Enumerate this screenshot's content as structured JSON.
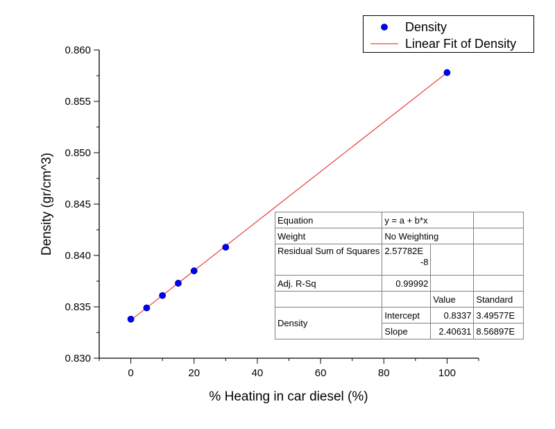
{
  "chart_data": {
    "type": "scatter",
    "xlabel": "% Heating in car diesel (%)",
    "ylabel": "Density (gr/cm^3)",
    "xlim": [
      -10,
      110
    ],
    "ylim": [
      0.83,
      0.86
    ],
    "xticks": [
      "0",
      "20",
      "40",
      "60",
      "80",
      "100"
    ],
    "yticks": [
      "0.830",
      "0.835",
      "0.840",
      "0.845",
      "0.850",
      "0.855",
      "0.860"
    ],
    "series": [
      {
        "name": "Density",
        "kind": "scatter",
        "color": "#0000ff",
        "x": [
          0,
          5,
          10,
          15,
          20,
          30,
          100
        ],
        "y": [
          0.8338,
          0.8349,
          0.8361,
          0.8373,
          0.8385,
          0.8408,
          0.8578
        ]
      },
      {
        "name": "Linear Fit of Density",
        "kind": "line",
        "color": "#e31a1c",
        "x": [
          0,
          100
        ],
        "y": [
          0.8337,
          0.8578
        ]
      }
    ],
    "legend": "top-right",
    "grid": false
  },
  "stats": {
    "equation_label": "Equation",
    "equation_value": "y = a + b*x",
    "weight_label": "Weight",
    "weight_value": "No Weighting",
    "residual_label": "Residual Sum of Squares",
    "residual_value_a": "2.57782E",
    "residual_value_b": "-8",
    "adjr_label": "Adj. R-Sq",
    "adjr_value": "0.99992",
    "col_value": "Value",
    "col_standard": "Standard",
    "group_label": "Density",
    "intercept_label": "Intercept",
    "intercept_value": "0.8337",
    "intercept_std": "3.49577E",
    "slope_label": "Slope",
    "slope_value": "2.40631",
    "slope_std": "8.56897E"
  }
}
